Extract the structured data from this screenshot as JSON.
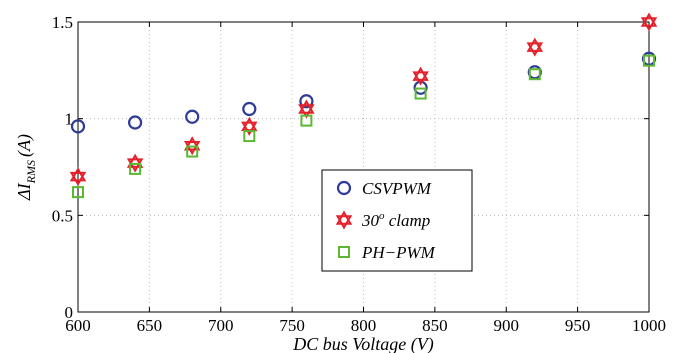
{
  "chart_data": {
    "type": "scatter",
    "xlabel": "DC bus Voltage (V)",
    "ylabel": "ΔI_RMS (A)",
    "ylabel_parts": {
      "prefix": "ΔI",
      "subscript": "RMS",
      "suffix": "(A)"
    },
    "xlim": [
      600,
      1000
    ],
    "ylim": [
      0,
      1.5
    ],
    "x_ticks": [
      600,
      650,
      700,
      750,
      800,
      850,
      900,
      950,
      1000
    ],
    "y_ticks": [
      0,
      0.5,
      1,
      1.5
    ],
    "x_tick_labels": [
      "600",
      "650",
      "700",
      "750",
      "800",
      "850",
      "900",
      "950",
      "1000"
    ],
    "y_tick_labels": [
      "0",
      "0.5",
      "1",
      "1.5"
    ],
    "grid": true,
    "legend_position": "center-right",
    "series": [
      {
        "name": "CSVPWM",
        "marker": "circle",
        "color": "#2E3C97",
        "x": [
          600,
          640,
          680,
          720,
          760,
          840,
          920,
          1000
        ],
        "y": [
          0.96,
          0.98,
          1.01,
          1.05,
          1.09,
          1.16,
          1.24,
          1.31
        ]
      },
      {
        "name": "30o clamp",
        "legend_label_parts": {
          "base": "30",
          "superscript": "o",
          "rest": " clamp"
        },
        "marker": "star",
        "color": "#E4212B",
        "x": [
          600,
          640,
          680,
          720,
          760,
          840,
          920,
          1000
        ],
        "y": [
          0.7,
          0.77,
          0.86,
          0.96,
          1.05,
          1.22,
          1.37,
          1.5
        ]
      },
      {
        "name": "PH-PWM",
        "legend_label": "PH−PWM",
        "marker": "square",
        "color": "#5BB830",
        "x": [
          600,
          640,
          680,
          720,
          760,
          840,
          920,
          1000
        ],
        "y": [
          0.62,
          0.74,
          0.83,
          0.91,
          0.99,
          1.13,
          1.23,
          1.3
        ]
      }
    ]
  }
}
